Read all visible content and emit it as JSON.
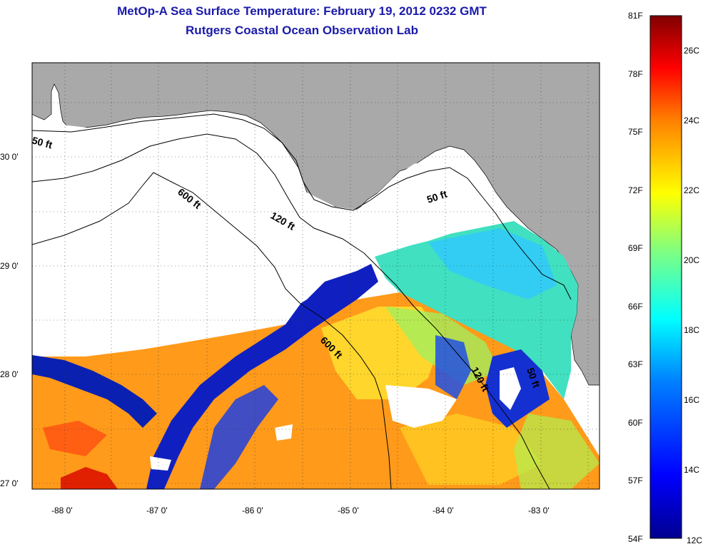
{
  "title": "MetOp-A Sea Surface Temperature:  February 19, 2012 0232 GMT",
  "subtitle": "Rutgers Coastal Ocean Observation Lab",
  "map": {
    "land_color": "#a9a9a9",
    "nodata_color": "#ffffff",
    "contour_labels": [
      "50 ft",
      "600 ft",
      "120 ft",
      "50 ft",
      "600 ft",
      "120 ft",
      "50 ft"
    ],
    "y_ticks": [
      "30 0'",
      "29 0'",
      "28 0'",
      "27 0'"
    ],
    "x_ticks": [
      "-88 0'",
      "-87 0'",
      "-86 0'",
      "-85 0'",
      "-84 0'",
      "-83 0'"
    ]
  },
  "colorbar": {
    "fahrenheit": [
      "81F",
      "78F",
      "75F",
      "72F",
      "69F",
      "66F",
      "63F",
      "60F",
      "57F",
      "54F"
    ],
    "celsius": [
      "26C",
      "24C",
      "22C",
      "20C",
      "18C",
      "16C",
      "14C",
      "12C"
    ],
    "colors": [
      "#00008f",
      "#0000ff",
      "#0080ff",
      "#00ffff",
      "#80ff80",
      "#ffff00",
      "#ff8000",
      "#ff0000",
      "#800000"
    ]
  }
}
